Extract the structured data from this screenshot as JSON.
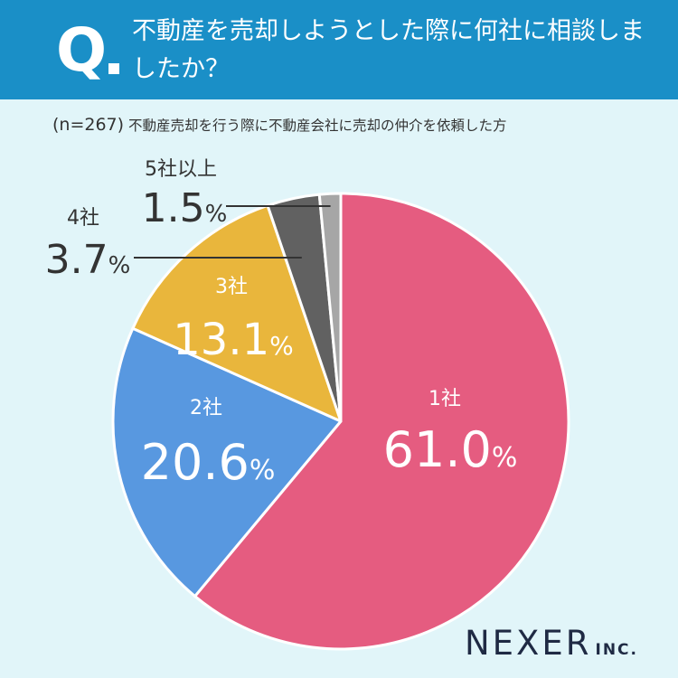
{
  "header": {
    "q_mark": "Q",
    "question": "不動産を売却しようとした際に何社に相談しましたか？"
  },
  "subtitle": {
    "n": "(n=267)",
    "text": "不動産売却を行う際に不動産会社に売却の仲介を依頼した方"
  },
  "chart_data": {
    "type": "pie",
    "unit": "%",
    "slices": [
      {
        "label": "1社",
        "value": 61.0,
        "display": "61.0",
        "color": "#e55c80"
      },
      {
        "label": "2社",
        "value": 20.6,
        "display": "20.6",
        "color": "#5898e0"
      },
      {
        "label": "3社",
        "value": 13.1,
        "display": "13.1",
        "color": "#e9b63c"
      },
      {
        "label": "4社",
        "value": 3.7,
        "display": "3.7",
        "color": "#616161"
      },
      {
        "label": "5社以上",
        "value": 1.5,
        "display": "1.5",
        "color": "#a6a6a6"
      }
    ]
  },
  "logo": {
    "name": "NEXER",
    "suffix": "INC."
  }
}
